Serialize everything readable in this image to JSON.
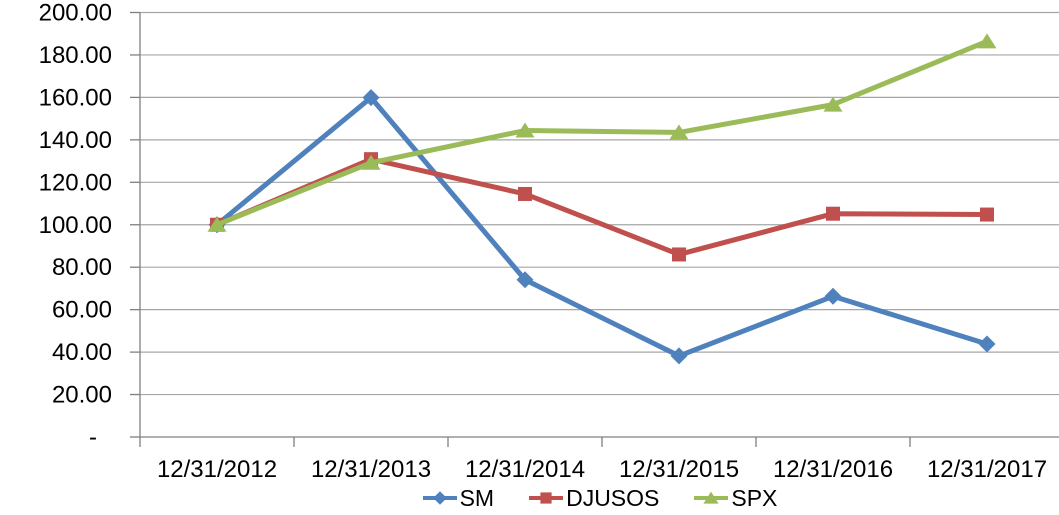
{
  "chart_data": {
    "type": "line",
    "title": "",
    "xlabel": "",
    "ylabel": "",
    "categories": [
      "12/31/2012",
      "12/31/2013",
      "12/31/2014",
      "12/31/2015",
      "12/31/2016",
      "12/31/2017"
    ],
    "series": [
      {
        "name": "SM",
        "color": "#4F81BD",
        "marker": "diamond",
        "values": [
          100.0,
          159.9,
          74.1,
          38.2,
          66.3,
          43.8
        ]
      },
      {
        "name": "DJUSOS",
        "color": "#C0504D",
        "marker": "square",
        "values": [
          100.0,
          130.9,
          114.5,
          86.0,
          105.2,
          104.8
        ]
      },
      {
        "name": "SPX",
        "color": "#9BBB59",
        "marker": "triangle",
        "values": [
          100.0,
          129.2,
          144.4,
          143.5,
          156.6,
          186.4
        ]
      }
    ],
    "ylim": [
      0,
      200
    ],
    "y_step": 20,
    "y_tick_labels": [
      "-",
      "20.00",
      "40.00",
      "60.00",
      "80.00",
      "100.00",
      "120.00",
      "140.00",
      "160.00",
      "180.00",
      "200.00"
    ],
    "grid": true,
    "legend_position": "bottom",
    "gridline_color": "#A6A6A6",
    "axis_color": "#808080",
    "text_color": "#000000",
    "background_color": "#FFFFFF"
  }
}
